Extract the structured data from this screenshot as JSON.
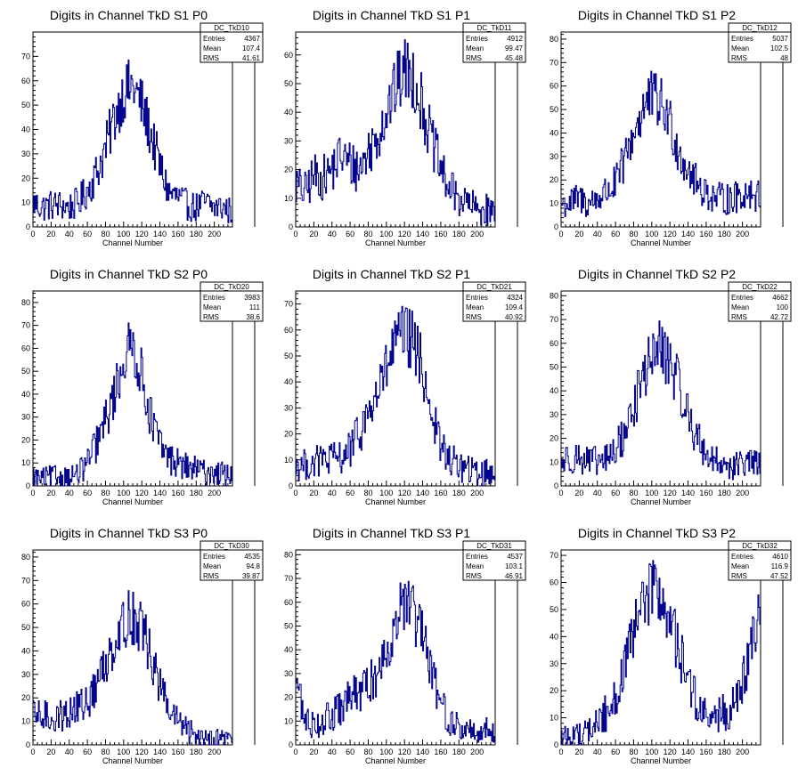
{
  "colors": {
    "histogram": "#00008b",
    "frame": "#000000",
    "background": "#ffffff"
  },
  "chart_data": [
    {
      "type": "histogram",
      "title": "Digits in Channel TkD S1 P0",
      "xlabel": "Channel Number",
      "ylabel": "",
      "xlim": [
        0,
        220
      ],
      "ylim": [
        0,
        80
      ],
      "xticks": [
        0,
        20,
        40,
        60,
        80,
        100,
        120,
        140,
        160,
        180,
        200
      ],
      "yticks": [
        0,
        10,
        20,
        30,
        40,
        50,
        60,
        70
      ],
      "stats": {
        "name": "DC_TkD10",
        "Entries": "4367",
        "Mean": "107.4",
        "RMS": "41.61"
      },
      "x": [
        0,
        10,
        20,
        30,
        40,
        50,
        60,
        70,
        80,
        90,
        100,
        110,
        120,
        130,
        140,
        150,
        160,
        170,
        180,
        190,
        200,
        210,
        220
      ],
      "y": [
        10,
        8,
        9,
        9,
        8,
        10,
        15,
        22,
        32,
        45,
        55,
        58,
        50,
        38,
        25,
        14,
        12,
        9,
        8,
        10,
        8,
        8,
        6
      ]
    },
    {
      "type": "histogram",
      "title": "Digits in Channel TkD S1 P1",
      "xlabel": "Channel Number",
      "ylabel": "",
      "xlim": [
        0,
        220
      ],
      "ylim": [
        0,
        68
      ],
      "xticks": [
        0,
        20,
        40,
        60,
        80,
        100,
        120,
        140,
        160,
        180,
        200
      ],
      "yticks": [
        0,
        10,
        20,
        30,
        40,
        50,
        60
      ],
      "stats": {
        "name": "DC_TkD11",
        "Entries": "4912",
        "Mean": "99.47",
        "RMS": "45.48"
      },
      "x": [
        0,
        10,
        20,
        30,
        40,
        50,
        60,
        70,
        80,
        90,
        100,
        110,
        120,
        130,
        140,
        150,
        160,
        170,
        180,
        190,
        200,
        210,
        220
      ],
      "y": [
        15,
        12,
        18,
        17,
        20,
        25,
        22,
        20,
        26,
        32,
        40,
        48,
        55,
        52,
        42,
        30,
        20,
        13,
        10,
        8,
        6,
        6,
        5
      ]
    },
    {
      "type": "histogram",
      "title": "Digits in Channel TkD S1 P2",
      "xlabel": "Channel Number",
      "ylabel": "",
      "xlim": [
        0,
        220
      ],
      "ylim": [
        0,
        83
      ],
      "xticks": [
        0,
        20,
        40,
        60,
        80,
        100,
        120,
        140,
        160,
        180,
        200
      ],
      "yticks": [
        0,
        10,
        20,
        30,
        40,
        50,
        60,
        70,
        80
      ],
      "stats": {
        "name": "DC_TkD12",
        "Entries": "5037",
        "Mean": "102.5",
        "RMS": "48"
      },
      "x": [
        0,
        10,
        20,
        30,
        40,
        50,
        60,
        70,
        80,
        90,
        100,
        110,
        120,
        130,
        140,
        150,
        160,
        170,
        180,
        190,
        200,
        210,
        220
      ],
      "y": [
        10,
        10,
        12,
        10,
        12,
        15,
        18,
        28,
        40,
        50,
        55,
        52,
        45,
        32,
        25,
        18,
        15,
        12,
        12,
        12,
        14,
        15,
        12
      ]
    },
    {
      "type": "histogram",
      "title": "Digits in Channel TkD S2 P0",
      "xlabel": "Channel Number",
      "ylabel": "",
      "xlim": [
        0,
        220
      ],
      "ylim": [
        0,
        85
      ],
      "xticks": [
        0,
        20,
        40,
        60,
        80,
        100,
        120,
        140,
        160,
        180,
        200
      ],
      "yticks": [
        0,
        10,
        20,
        30,
        40,
        50,
        60,
        70,
        80
      ],
      "stats": {
        "name": "DC_TkD20",
        "Entries": "3983",
        "Mean": "111",
        "RMS": "38.6"
      },
      "x": [
        0,
        10,
        20,
        30,
        40,
        50,
        60,
        70,
        80,
        90,
        100,
        110,
        120,
        130,
        140,
        150,
        160,
        170,
        180,
        190,
        200,
        210,
        220
      ],
      "y": [
        4,
        3,
        4,
        4,
        4,
        5,
        10,
        18,
        28,
        40,
        55,
        62,
        48,
        30,
        18,
        12,
        10,
        8,
        7,
        6,
        6,
        5,
        5
      ]
    },
    {
      "type": "histogram",
      "title": "Digits in Channel TkD S2 P1",
      "xlabel": "Channel Number",
      "ylabel": "",
      "xlim": [
        0,
        220
      ],
      "ylim": [
        0,
        75
      ],
      "xticks": [
        0,
        20,
        40,
        60,
        80,
        100,
        120,
        140,
        160,
        180,
        200
      ],
      "yticks": [
        0,
        10,
        20,
        30,
        40,
        50,
        60,
        70
      ],
      "stats": {
        "name": "DC_TkD21",
        "Entries": "4324",
        "Mean": "109.4",
        "RMS": "40.92"
      },
      "x": [
        0,
        10,
        20,
        30,
        40,
        50,
        60,
        70,
        80,
        90,
        100,
        110,
        120,
        130,
        140,
        150,
        160,
        170,
        180,
        190,
        200,
        210,
        220
      ],
      "y": [
        8,
        8,
        9,
        10,
        10,
        11,
        14,
        20,
        28,
        35,
        45,
        55,
        58,
        55,
        45,
        28,
        15,
        10,
        8,
        6,
        5,
        5,
        5
      ]
    },
    {
      "type": "histogram",
      "title": "Digits in Channel TkD S2 P2",
      "xlabel": "Channel Number",
      "ylabel": "",
      "xlim": [
        0,
        220
      ],
      "ylim": [
        0,
        82
      ],
      "xticks": [
        0,
        20,
        40,
        60,
        80,
        100,
        120,
        140,
        160,
        180,
        200
      ],
      "yticks": [
        0,
        10,
        20,
        30,
        40,
        50,
        60,
        70,
        80
      ],
      "stats": {
        "name": "DC_TkD22",
        "Entries": "4662",
        "Mean": "100",
        "RMS": "42.72"
      },
      "x": [
        0,
        10,
        20,
        30,
        40,
        50,
        60,
        70,
        80,
        90,
        100,
        110,
        120,
        130,
        140,
        150,
        160,
        170,
        180,
        190,
        200,
        210,
        220
      ],
      "y": [
        10,
        12,
        12,
        10,
        10,
        11,
        15,
        22,
        33,
        45,
        55,
        58,
        52,
        42,
        30,
        20,
        14,
        10,
        10,
        8,
        9,
        10,
        8
      ]
    },
    {
      "type": "histogram",
      "title": "Digits in Channel TkD S3 P0",
      "xlabel": "Channel Number",
      "ylabel": "",
      "xlim": [
        0,
        220
      ],
      "ylim": [
        0,
        83
      ],
      "xticks": [
        0,
        20,
        40,
        60,
        80,
        100,
        120,
        140,
        160,
        180,
        200
      ],
      "yticks": [
        0,
        10,
        20,
        30,
        40,
        50,
        60,
        70,
        80
      ],
      "stats": {
        "name": "DC_TkD30",
        "Entries": "4535",
        "Mean": "94.8",
        "RMS": "39.87"
      },
      "x": [
        0,
        10,
        20,
        30,
        40,
        50,
        60,
        70,
        80,
        90,
        100,
        110,
        120,
        130,
        140,
        150,
        160,
        170,
        180,
        190,
        200,
        210,
        220
      ],
      "y": [
        12,
        12,
        12,
        12,
        14,
        16,
        18,
        25,
        35,
        45,
        52,
        55,
        50,
        38,
        25,
        15,
        10,
        6,
        4,
        4,
        3,
        3,
        3
      ]
    },
    {
      "type": "histogram",
      "title": "Digits in Channel TkD S3 P1",
      "xlabel": "Channel Number",
      "ylabel": "",
      "xlim": [
        0,
        220
      ],
      "ylim": [
        0,
        82
      ],
      "xticks": [
        0,
        20,
        40,
        60,
        80,
        100,
        120,
        140,
        160,
        180,
        200
      ],
      "yticks": [
        0,
        10,
        20,
        30,
        40,
        50,
        60,
        70,
        80
      ],
      "stats": {
        "name": "DC_TkD31",
        "Entries": "4537",
        "Mean": "103.1",
        "RMS": "46.91"
      },
      "x": [
        0,
        10,
        20,
        30,
        40,
        50,
        60,
        70,
        80,
        90,
        100,
        110,
        120,
        130,
        140,
        150,
        160,
        170,
        180,
        190,
        200,
        210,
        220
      ],
      "y": [
        30,
        10,
        9,
        10,
        12,
        15,
        20,
        22,
        25,
        30,
        40,
        52,
        60,
        55,
        45,
        30,
        18,
        10,
        7,
        6,
        6,
        6,
        6
      ]
    },
    {
      "type": "histogram",
      "title": "Digits in Channel TkD S3 P2",
      "xlabel": "Channel Number",
      "ylabel": "",
      "xlim": [
        0,
        220
      ],
      "ylim": [
        0,
        72
      ],
      "xticks": [
        0,
        20,
        40,
        60,
        80,
        100,
        120,
        140,
        160,
        180,
        200
      ],
      "yticks": [
        0,
        10,
        20,
        30,
        40,
        50,
        60,
        70
      ],
      "stats": {
        "name": "DC_TkD32",
        "Entries": "4610",
        "Mean": "116.9",
        "RMS": "47.52"
      },
      "x": [
        0,
        10,
        20,
        30,
        40,
        50,
        60,
        70,
        80,
        90,
        100,
        110,
        120,
        130,
        140,
        150,
        160,
        170,
        180,
        190,
        200,
        210,
        220
      ],
      "y": [
        3,
        3,
        4,
        5,
        8,
        12,
        18,
        28,
        40,
        52,
        58,
        55,
        45,
        35,
        25,
        15,
        10,
        10,
        12,
        14,
        22,
        35,
        50
      ]
    }
  ]
}
